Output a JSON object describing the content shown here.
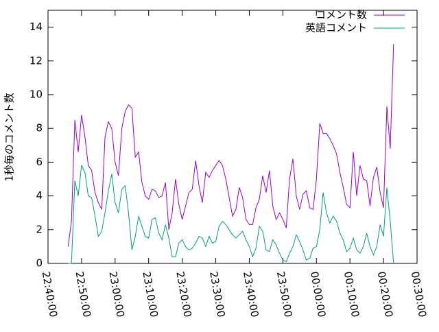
{
  "chart_data": {
    "type": "line",
    "ylabel": "1秒毎のコメント数",
    "x": [
      "22:46:00",
      "22:47:00",
      "22:48:00",
      "22:49:00",
      "22:50:00",
      "22:51:00",
      "22:52:00",
      "22:53:00",
      "22:54:00",
      "22:55:00",
      "22:56:00",
      "22:57:00",
      "22:58:00",
      "22:59:00",
      "23:00:00",
      "23:01:00",
      "23:02:00",
      "23:03:00",
      "23:04:00",
      "23:05:00",
      "23:06:00",
      "23:07:00",
      "23:08:00",
      "23:09:00",
      "23:10:00",
      "23:11:00",
      "23:12:00",
      "23:13:00",
      "23:14:00",
      "23:15:00",
      "23:16:00",
      "23:17:00",
      "23:18:00",
      "23:19:00",
      "23:20:00",
      "23:21:00",
      "23:22:00",
      "23:23:00",
      "23:24:00",
      "23:25:00",
      "23:26:00",
      "23:27:00",
      "23:28:00",
      "23:29:00",
      "23:30:00",
      "23:31:00",
      "23:32:00",
      "23:33:00",
      "23:34:00",
      "23:35:00",
      "23:36:00",
      "23:37:00",
      "23:38:00",
      "23:39:00",
      "23:40:00",
      "23:41:00",
      "23:42:00",
      "23:43:00",
      "23:44:00",
      "23:45:00",
      "23:46:00",
      "23:47:00",
      "23:48:00",
      "23:49:00",
      "23:50:00",
      "23:51:00",
      "23:52:00",
      "23:53:00",
      "23:54:00",
      "23:55:00",
      "23:56:00",
      "23:57:00",
      "23:58:00",
      "23:59:00",
      "00:00:00",
      "00:01:00",
      "00:02:00",
      "00:03:00",
      "00:04:00",
      "00:05:00",
      "00:06:00",
      "00:07:00",
      "00:08:00",
      "00:09:00",
      "00:10:00",
      "00:11:00",
      "00:12:00",
      "00:13:00",
      "00:14:00",
      "00:15:00",
      "00:16:00",
      "00:17:00",
      "00:18:00",
      "00:19:00",
      "00:20:00",
      "00:21:00",
      "00:22:00",
      "00:23:00"
    ],
    "series": [
      {
        "name": "コメント数",
        "color": "#9400d3",
        "values": [
          1.0,
          2.5,
          8.5,
          6.6,
          8.8,
          7.5,
          5.8,
          5.5,
          4.2,
          3.6,
          3.2,
          7.5,
          8.4,
          8.0,
          6.0,
          5.2,
          8.0,
          9.0,
          9.4,
          9.2,
          6.3,
          6.6,
          4.8,
          4.0,
          3.8,
          4.4,
          4.3,
          3.9,
          4.0,
          4.8,
          2.0,
          3.0,
          5.0,
          3.5,
          2.6,
          3.4,
          4.2,
          4.4,
          6.1,
          4.6,
          3.6,
          5.4,
          5.1,
          5.5,
          5.8,
          6.1,
          5.8,
          5.0,
          3.9,
          2.8,
          3.2,
          4.5,
          3.9,
          2.6,
          2.3,
          2.3,
          3.3,
          3.8,
          5.2,
          4.2,
          5.5,
          3.4,
          2.6,
          3.0,
          2.6,
          2.1,
          5.0,
          6.2,
          4.0,
          3.2,
          4.1,
          4.3,
          3.3,
          3.2,
          5.0,
          8.3,
          7.7,
          7.7,
          7.4,
          7.0,
          6.5,
          5.4,
          4.5,
          3.5,
          3.3,
          6.6,
          4.0,
          5.8,
          5.0,
          4.9,
          3.4,
          5.1,
          5.7,
          4.2,
          3.3,
          9.3,
          6.8,
          13.0
        ]
      },
      {
        "name": "英語コメント",
        "color": "#009e73",
        "values": [
          0,
          0,
          4.9,
          4.0,
          5.8,
          5.4,
          4.0,
          3.9,
          2.8,
          1.6,
          1.9,
          3.0,
          4.3,
          5.3,
          3.6,
          3.0,
          4.4,
          4.6,
          3.0,
          0.8,
          1.6,
          2.8,
          2.2,
          1.6,
          1.5,
          2.6,
          2.7,
          1.8,
          1.4,
          2.3,
          1.5,
          0.4,
          0.4,
          1.2,
          1.4,
          1.0,
          0.8,
          0.9,
          1.2,
          1.6,
          1.5,
          1.0,
          1.6,
          1.2,
          1.3,
          2.2,
          2.5,
          2.3,
          2.0,
          1.7,
          1.5,
          1.7,
          1.9,
          1.4,
          1.0,
          0.4,
          0.9,
          2.2,
          1.9,
          0.8,
          0.7,
          1.4,
          1.1,
          0.6,
          0.2,
          0.1,
          0.6,
          1.0,
          1.7,
          1.3,
          0.8,
          0.2,
          0.3,
          0.9,
          1.0,
          2.0,
          4.2,
          3.0,
          2.4,
          2.8,
          2.5,
          1.8,
          1.4,
          0.7,
          0.9,
          1.5,
          0.8,
          0.6,
          1.0,
          1.8,
          1.0,
          0.5,
          1.0,
          2.3,
          1.6,
          4.5,
          2.5,
          0.0
        ]
      }
    ],
    "xlim": [
      "22:40:00",
      "00:30:00"
    ],
    "xticks": [
      "22:40:00",
      "22:50:00",
      "23:00:00",
      "23:10:00",
      "23:20:00",
      "23:30:00",
      "23:40:00",
      "23:50:00",
      "00:00:00",
      "00:10:00",
      "00:20:00",
      "00:30:00"
    ],
    "ylim": [
      0,
      15
    ],
    "yticks": [
      0,
      2,
      4,
      6,
      8,
      10,
      12,
      14
    ],
    "legend": "top-right"
  }
}
